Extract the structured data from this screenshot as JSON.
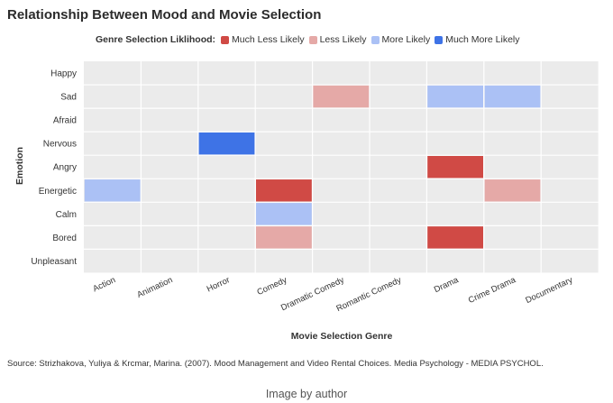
{
  "chart_data": {
    "type": "heatmap",
    "title": "Relationship Between Mood and Movie Selection",
    "legend_title": "Genre Selection Liklihood:",
    "legend": [
      {
        "label": "Much Less Likely",
        "color": "#d04a45"
      },
      {
        "label": "Less Likely",
        "color": "#e5a9a7"
      },
      {
        "label": "More Likely",
        "color": "#abc1f5"
      },
      {
        "label": "Much More Likely",
        "color": "#3e73e6"
      }
    ],
    "xlabel": "Movie Selection Genre",
    "ylabel": "Emotion",
    "x_categories": [
      "Action",
      "Animation",
      "Horror",
      "Comedy",
      "Dramatic Comedy",
      "Romantic Comedy",
      "Drama",
      "Crime Drama",
      "Documentary"
    ],
    "y_categories": [
      "Happy",
      "Sad",
      "Afraid",
      "Nervous",
      "Angry",
      "Energetic",
      "Calm",
      "Bored",
      "Unpleasant"
    ],
    "cells": [
      {
        "emotion": "Sad",
        "genre": "Dramatic Comedy",
        "level": "Less Likely"
      },
      {
        "emotion": "Sad",
        "genre": "Drama",
        "level": "More Likely"
      },
      {
        "emotion": "Sad",
        "genre": "Crime Drama",
        "level": "More Likely"
      },
      {
        "emotion": "Nervous",
        "genre": "Horror",
        "level": "Much More Likely"
      },
      {
        "emotion": "Angry",
        "genre": "Drama",
        "level": "Much Less Likely"
      },
      {
        "emotion": "Energetic",
        "genre": "Action",
        "level": "More Likely"
      },
      {
        "emotion": "Energetic",
        "genre": "Comedy",
        "level": "Much Less Likely"
      },
      {
        "emotion": "Energetic",
        "genre": "Crime Drama",
        "level": "Less Likely"
      },
      {
        "emotion": "Calm",
        "genre": "Comedy",
        "level": "More Likely"
      },
      {
        "emotion": "Bored",
        "genre": "Comedy",
        "level": "Less Likely"
      },
      {
        "emotion": "Bored",
        "genre": "Drama",
        "level": "Much Less Likely"
      }
    ],
    "grid": true
  },
  "source": "Source: Strizhakova, Yuliya & Krcmar, Marina. (2007). Mood Management and Video Rental Choices. Media Psychology - MEDIA PSYCHOL.",
  "caption": "Image by author"
}
